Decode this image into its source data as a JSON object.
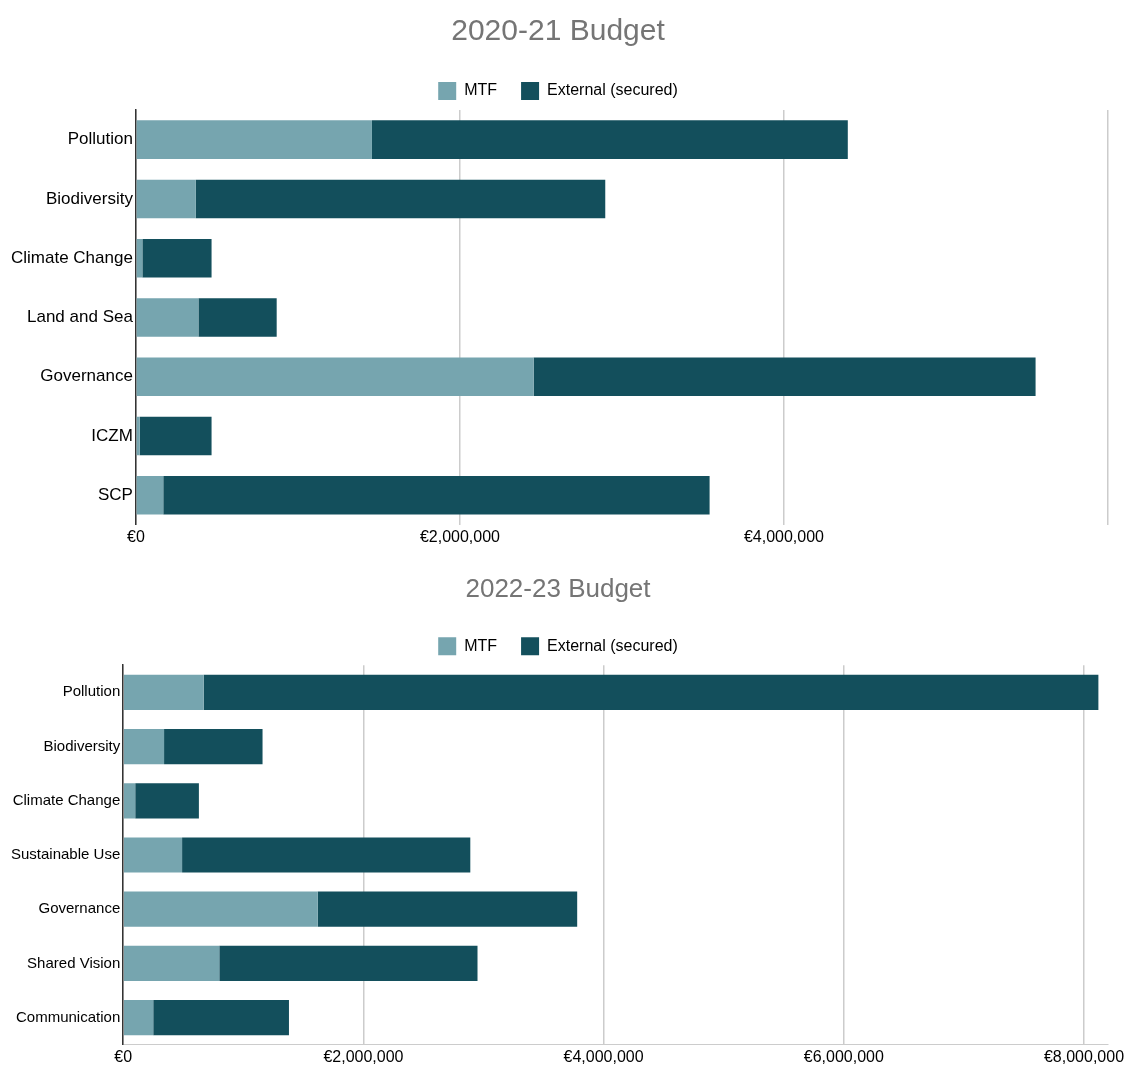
{
  "chart_data": [
    {
      "type": "bar",
      "orientation": "horizontal",
      "stacked": true,
      "title": "2020-21 Budget",
      "categories": [
        "Pollution",
        "Biodiversity",
        "Climate Change",
        "Land and Sea",
        "Governance",
        "ICZM",
        "SCP"
      ],
      "series": [
        {
          "name": "MTF",
          "color": "#76a5af",
          "values": [
            1457000,
            370000,
            40000,
            386000,
            2455000,
            24000,
            169000
          ]
        },
        {
          "name": "External (secured)",
          "color": "#134f5c",
          "values": [
            2937000,
            2527000,
            427000,
            483000,
            3098000,
            443000,
            3372000
          ]
        }
      ],
      "xlim": [
        0,
        6000000
      ],
      "xticks": [
        {
          "value": 0,
          "label": "€0"
        },
        {
          "value": 2000000,
          "label": "€2,000,000"
        },
        {
          "value": 4000000,
          "label": "€4,000,000"
        },
        {
          "value": 6000000,
          "label": null
        }
      ],
      "grid": "x",
      "legend": "top"
    },
    {
      "type": "bar",
      "orientation": "horizontal",
      "stacked": true,
      "title": "2022-23 Budget",
      "categories": [
        "Pollution",
        "Biodiversity",
        "Climate Change",
        "Sustainable Use",
        "Governance",
        "Shared Vision",
        "Communication"
      ],
      "series": [
        {
          "name": "MTF",
          "color": "#76a5af",
          "values": [
            670000,
            340000,
            100000,
            490000,
            1620000,
            800000,
            250000
          ]
        },
        {
          "name": "External (secured)",
          "color": "#134f5c",
          "values": [
            7450000,
            820000,
            530000,
            2400000,
            2160000,
            2150000,
            1130000
          ]
        }
      ],
      "xlim": [
        0,
        8200000
      ],
      "xticks": [
        {
          "value": 0,
          "label": "€0"
        },
        {
          "value": 2000000,
          "label": "€2,000,000"
        },
        {
          "value": 4000000,
          "label": "€4,000,000"
        },
        {
          "value": 6000000,
          "label": "€6,000,000"
        },
        {
          "value": 8000000,
          "label": "€8,000,000"
        }
      ],
      "grid": "x",
      "legend": "top"
    }
  ]
}
